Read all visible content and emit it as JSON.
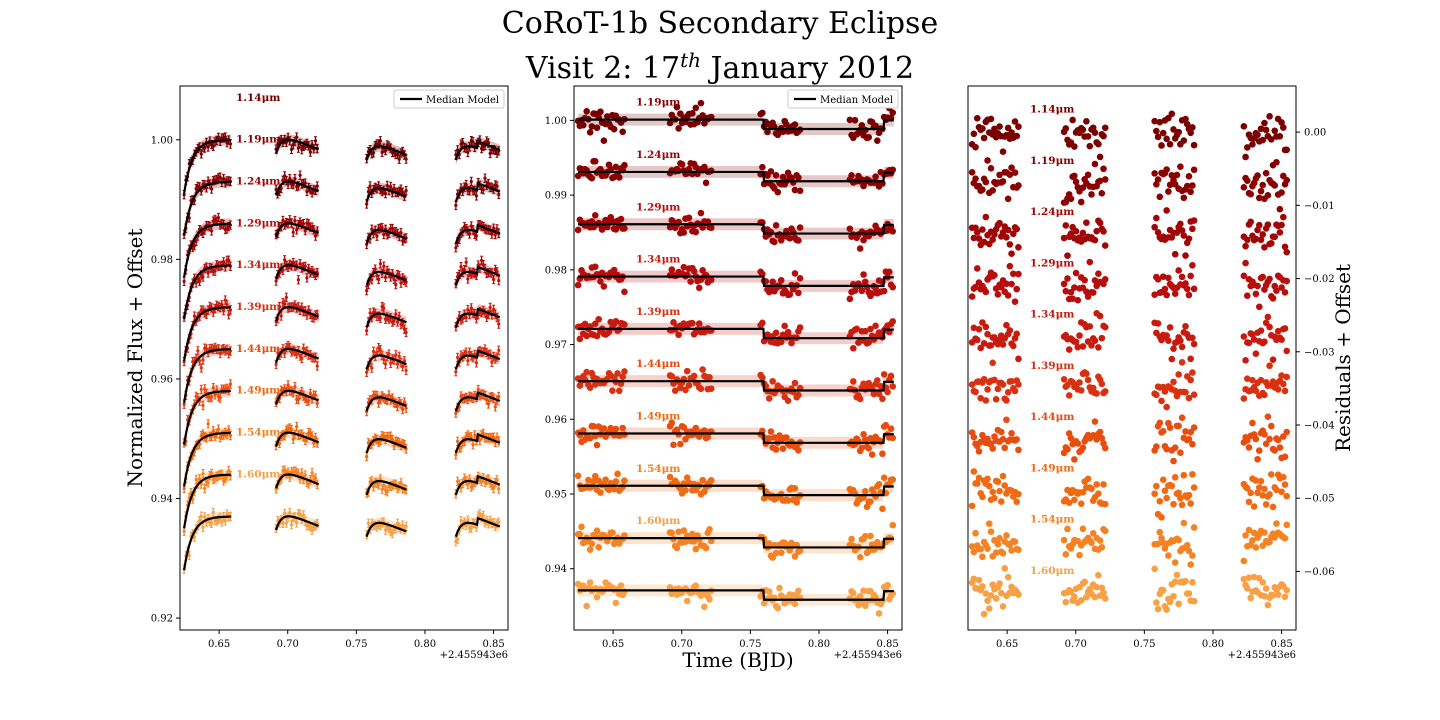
{
  "title": {
    "line1": "CoRoT-1b Secondary Eclipse",
    "line2_prefix": "Visit 2: 17",
    "line2_sup": "th",
    "line2_suffix": " January 2012"
  },
  "colors": {
    "wavelengths": [
      "#7a0000",
      "#8b0000",
      "#a10606",
      "#b80d0d",
      "#c81b0f",
      "#d83112",
      "#e84d10",
      "#f06a13",
      "#f58223",
      "#f7a046"
    ],
    "median_model": "#000000"
  },
  "chart_data": [
    {
      "type": "scatter",
      "name": "light-curves",
      "ylabel": "Normalized Flux + Offset",
      "xlabel": "",
      "x_offset_label": "+2.455943e6",
      "xlim": [
        0.6215,
        0.8605
      ],
      "ylim": [
        0.918,
        1.009
      ],
      "x_ticks": [
        0.65,
        0.7,
        0.75,
        0.8,
        0.85
      ],
      "x_tick_labels": [
        "0.65",
        "0.70",
        "0.75",
        "0.80",
        "0.85"
      ],
      "y_ticks": [
        0.92,
        0.94,
        0.96,
        0.98,
        1.0
      ],
      "y_tick_labels": [
        "0.92",
        "0.94",
        "0.96",
        "0.98",
        "1.00"
      ],
      "legend": {
        "label": "Median Model",
        "placement": "top-right"
      },
      "series": [
        {
          "name": "1.14μm",
          "offset": 1.0
        },
        {
          "name": "1.19μm",
          "offset": 0.993
        },
        {
          "name": "1.24μm",
          "offset": 0.986
        },
        {
          "name": "1.29μm",
          "offset": 0.979
        },
        {
          "name": "1.34μm",
          "offset": 0.972
        },
        {
          "name": "1.39μm",
          "offset": 0.965
        },
        {
          "name": "1.44μm",
          "offset": 0.958
        },
        {
          "name": "1.49μm",
          "offset": 0.951
        },
        {
          "name": "1.54μm",
          "offset": 0.944
        },
        {
          "name": "1.60μm",
          "offset": 0.937
        }
      ],
      "labels": [
        "1.14μm",
        "1.19μm",
        "1.24μm",
        "1.29μm",
        "1.34μm",
        "1.39μm",
        "1.44μm",
        "1.49μm",
        "1.54μm",
        "1.60μm"
      ]
    },
    {
      "type": "scatter",
      "name": "detrended",
      "xlabel": "Time (BJD)",
      "ylabel": "",
      "x_offset_label": "+2.455943e6",
      "xlim": [
        0.6215,
        0.8605
      ],
      "ylim": [
        0.9318,
        1.0046
      ],
      "x_ticks": [
        0.65,
        0.7,
        0.75,
        0.8,
        0.85
      ],
      "x_tick_labels": [
        "0.65",
        "0.70",
        "0.75",
        "0.80",
        "0.85"
      ],
      "y_ticks": [
        0.94,
        0.95,
        0.96,
        0.97,
        0.98,
        0.99,
        1.0
      ],
      "y_tick_labels": [
        "0.94",
        "0.95",
        "0.96",
        "0.97",
        "0.98",
        "0.99",
        "1.00"
      ],
      "legend": {
        "label": "Median Model",
        "placement": "top-right"
      },
      "series": [
        {
          "name": "1.19μm",
          "offset": 1.0
        },
        {
          "name": "1.24μm",
          "offset": 0.993
        },
        {
          "name": "1.29μm",
          "offset": 0.986
        },
        {
          "name": "1.34μm",
          "offset": 0.979
        },
        {
          "name": "1.39μm",
          "offset": 0.972
        },
        {
          "name": "1.44μm",
          "offset": 0.965
        },
        {
          "name": "1.49μm",
          "offset": 0.958
        },
        {
          "name": "1.54μm",
          "offset": 0.951
        },
        {
          "name": "1.60μm",
          "offset": 0.944
        },
        {
          "name": "",
          "offset": 0.937
        }
      ],
      "labels": [
        "1.19μm",
        "1.24μm",
        "1.29μm",
        "1.34μm",
        "1.39μm",
        "1.44μm",
        "1.49μm",
        "1.54μm",
        "1.60μm"
      ]
    },
    {
      "type": "scatter",
      "name": "residuals",
      "ylabel": "Residuals + Offset",
      "xlabel": "",
      "x_offset_label": "+2.455943e6",
      "xlim": [
        0.6215,
        0.8605
      ],
      "ylim": [
        -0.068,
        0.0063
      ],
      "x_ticks": [
        0.65,
        0.7,
        0.75,
        0.8,
        0.85
      ],
      "x_tick_labels": [
        "0.65",
        "0.70",
        "0.75",
        "0.80",
        "0.85"
      ],
      "y_ticks": [
        0.0,
        -0.01,
        -0.02,
        -0.03,
        -0.04,
        -0.05,
        -0.06
      ],
      "y_tick_labels": [
        "0.00",
        "−0.01",
        "−0.02",
        "−0.03",
        "−0.04",
        "−0.05",
        "−0.06"
      ],
      "series": [
        {
          "name": "1.14μm",
          "offset": 0.0
        },
        {
          "name": "1.19μm",
          "offset": -0.007
        },
        {
          "name": "1.24μm",
          "offset": -0.014
        },
        {
          "name": "1.29μm",
          "offset": -0.021
        },
        {
          "name": "1.34μm",
          "offset": -0.028
        },
        {
          "name": "1.39μm",
          "offset": -0.035
        },
        {
          "name": "1.44μm",
          "offset": -0.042
        },
        {
          "name": "1.49μm",
          "offset": -0.049
        },
        {
          "name": "1.54μm",
          "offset": -0.056
        },
        {
          "name": "1.60μm",
          "offset": -0.063
        }
      ],
      "labels": [
        "1.14μm",
        "1.19μm",
        "1.24μm",
        "1.29μm",
        "1.34μm",
        "1.39μm",
        "1.44μm",
        "1.49μm",
        "1.54μm",
        "1.60μm"
      ]
    }
  ]
}
